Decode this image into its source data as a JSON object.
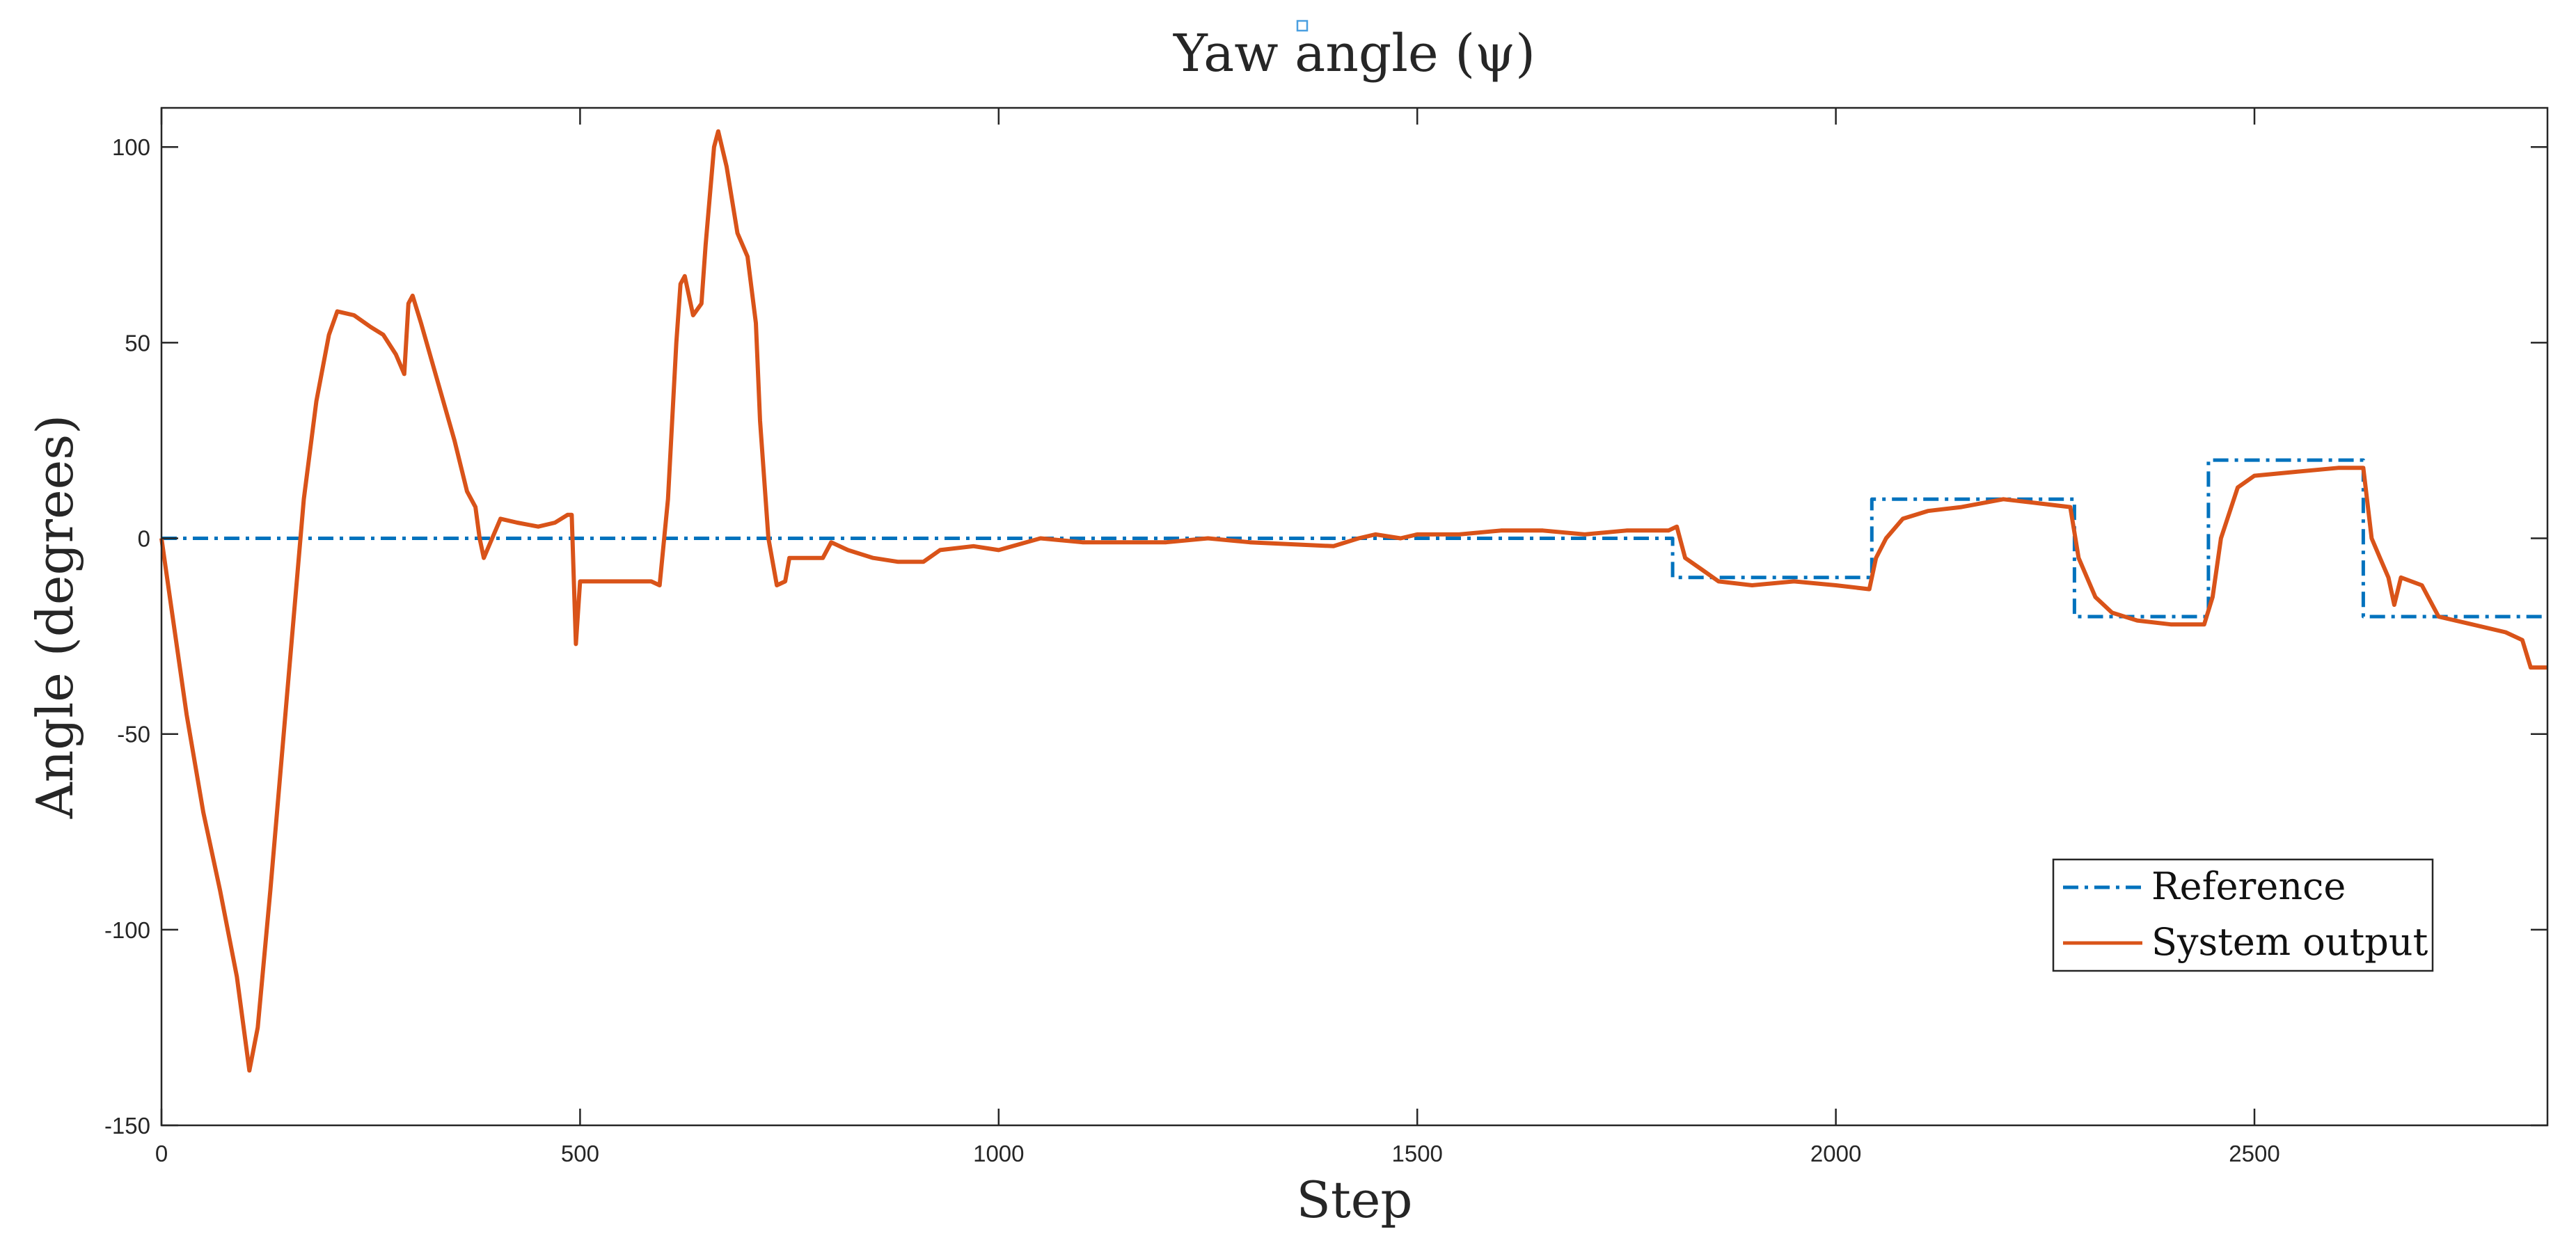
{
  "chart_data": {
    "type": "line",
    "title": "Yaw angle (ψ)",
    "xlabel": "Step",
    "ylabel": "Angle (degrees)",
    "xlim": [
      0,
      2850
    ],
    "ylim": [
      -150,
      110
    ],
    "xticks": [
      0,
      500,
      1000,
      1500,
      2000,
      2500
    ],
    "yticks": [
      -150,
      -100,
      -50,
      0,
      50,
      100
    ],
    "grid": false,
    "legend_position": "bottom-right",
    "series": [
      {
        "name": "Reference",
        "color": "#0072BD",
        "style": "dash-dot",
        "points": [
          [
            0,
            0
          ],
          [
            1805,
            0
          ],
          [
            1805,
            -10
          ],
          [
            2043,
            -10
          ],
          [
            2043,
            10
          ],
          [
            2285,
            10
          ],
          [
            2285,
            -20
          ],
          [
            2445,
            -20
          ],
          [
            2445,
            20
          ],
          [
            2630,
            20
          ],
          [
            2630,
            -20
          ],
          [
            2850,
            -20
          ]
        ]
      },
      {
        "name": "System output",
        "color": "#D95319",
        "style": "solid",
        "points": [
          [
            0,
            0
          ],
          [
            10,
            -15
          ],
          [
            30,
            -45
          ],
          [
            50,
            -70
          ],
          [
            70,
            -90
          ],
          [
            90,
            -112
          ],
          [
            105,
            -136
          ],
          [
            115,
            -125
          ],
          [
            130,
            -90
          ],
          [
            150,
            -40
          ],
          [
            170,
            10
          ],
          [
            185,
            35
          ],
          [
            200,
            52
          ],
          [
            210,
            58
          ],
          [
            230,
            57
          ],
          [
            250,
            54
          ],
          [
            265,
            52
          ],
          [
            280,
            47
          ],
          [
            290,
            42
          ],
          [
            295,
            60
          ],
          [
            300,
            62
          ],
          [
            310,
            55
          ],
          [
            330,
            40
          ],
          [
            350,
            25
          ],
          [
            365,
            12
          ],
          [
            375,
            8
          ],
          [
            380,
            0
          ],
          [
            385,
            -5
          ],
          [
            395,
            0
          ],
          [
            405,
            5
          ],
          [
            425,
            4
          ],
          [
            450,
            3
          ],
          [
            470,
            4
          ],
          [
            485,
            6
          ],
          [
            490,
            6
          ],
          [
            495,
            -27
          ],
          [
            500,
            -11
          ],
          [
            530,
            -11
          ],
          [
            560,
            -11
          ],
          [
            585,
            -11
          ],
          [
            595,
            -12
          ],
          [
            605,
            10
          ],
          [
            615,
            50
          ],
          [
            620,
            65
          ],
          [
            625,
            67
          ],
          [
            635,
            57
          ],
          [
            645,
            60
          ],
          [
            650,
            75
          ],
          [
            660,
            100
          ],
          [
            665,
            104
          ],
          [
            675,
            95
          ],
          [
            688,
            78
          ],
          [
            700,
            72
          ],
          [
            710,
            55
          ],
          [
            715,
            30
          ],
          [
            725,
            0
          ],
          [
            735,
            -12
          ],
          [
            745,
            -11
          ],
          [
            750,
            -5
          ],
          [
            790,
            -5
          ],
          [
            800,
            -1
          ],
          [
            820,
            -3
          ],
          [
            850,
            -5
          ],
          [
            880,
            -6
          ],
          [
            910,
            -6
          ],
          [
            930,
            -3
          ],
          [
            970,
            -2
          ],
          [
            1000,
            -3
          ],
          [
            1050,
            0
          ],
          [
            1100,
            -1
          ],
          [
            1200,
            -1
          ],
          [
            1250,
            0
          ],
          [
            1300,
            -1
          ],
          [
            1400,
            -2
          ],
          [
            1430,
            0
          ],
          [
            1450,
            1
          ],
          [
            1480,
            0
          ],
          [
            1500,
            1
          ],
          [
            1550,
            1
          ],
          [
            1600,
            2
          ],
          [
            1650,
            2
          ],
          [
            1700,
            1
          ],
          [
            1750,
            2
          ],
          [
            1800,
            2
          ],
          [
            1810,
            3
          ],
          [
            1820,
            -5
          ],
          [
            1840,
            -8
          ],
          [
            1860,
            -11
          ],
          [
            1900,
            -12
          ],
          [
            1950,
            -11
          ],
          [
            2000,
            -12
          ],
          [
            2040,
            -13
          ],
          [
            2048,
            -5
          ],
          [
            2060,
            0
          ],
          [
            2080,
            5
          ],
          [
            2110,
            7
          ],
          [
            2150,
            8
          ],
          [
            2200,
            10
          ],
          [
            2240,
            9
          ],
          [
            2280,
            8
          ],
          [
            2290,
            -5
          ],
          [
            2310,
            -15
          ],
          [
            2330,
            -19
          ],
          [
            2360,
            -21
          ],
          [
            2400,
            -22
          ],
          [
            2440,
            -22
          ],
          [
            2450,
            -15
          ],
          [
            2460,
            0
          ],
          [
            2480,
            13
          ],
          [
            2500,
            16
          ],
          [
            2550,
            17
          ],
          [
            2600,
            18
          ],
          [
            2630,
            18
          ],
          [
            2640,
            0
          ],
          [
            2650,
            -5
          ],
          [
            2660,
            -10
          ],
          [
            2667,
            -17
          ],
          [
            2675,
            -10
          ],
          [
            2700,
            -12
          ],
          [
            2720,
            -20
          ],
          [
            2760,
            -22
          ],
          [
            2800,
            -24
          ],
          [
            2820,
            -26
          ],
          [
            2830,
            -33
          ],
          [
            2850,
            -33
          ]
        ]
      }
    ]
  }
}
